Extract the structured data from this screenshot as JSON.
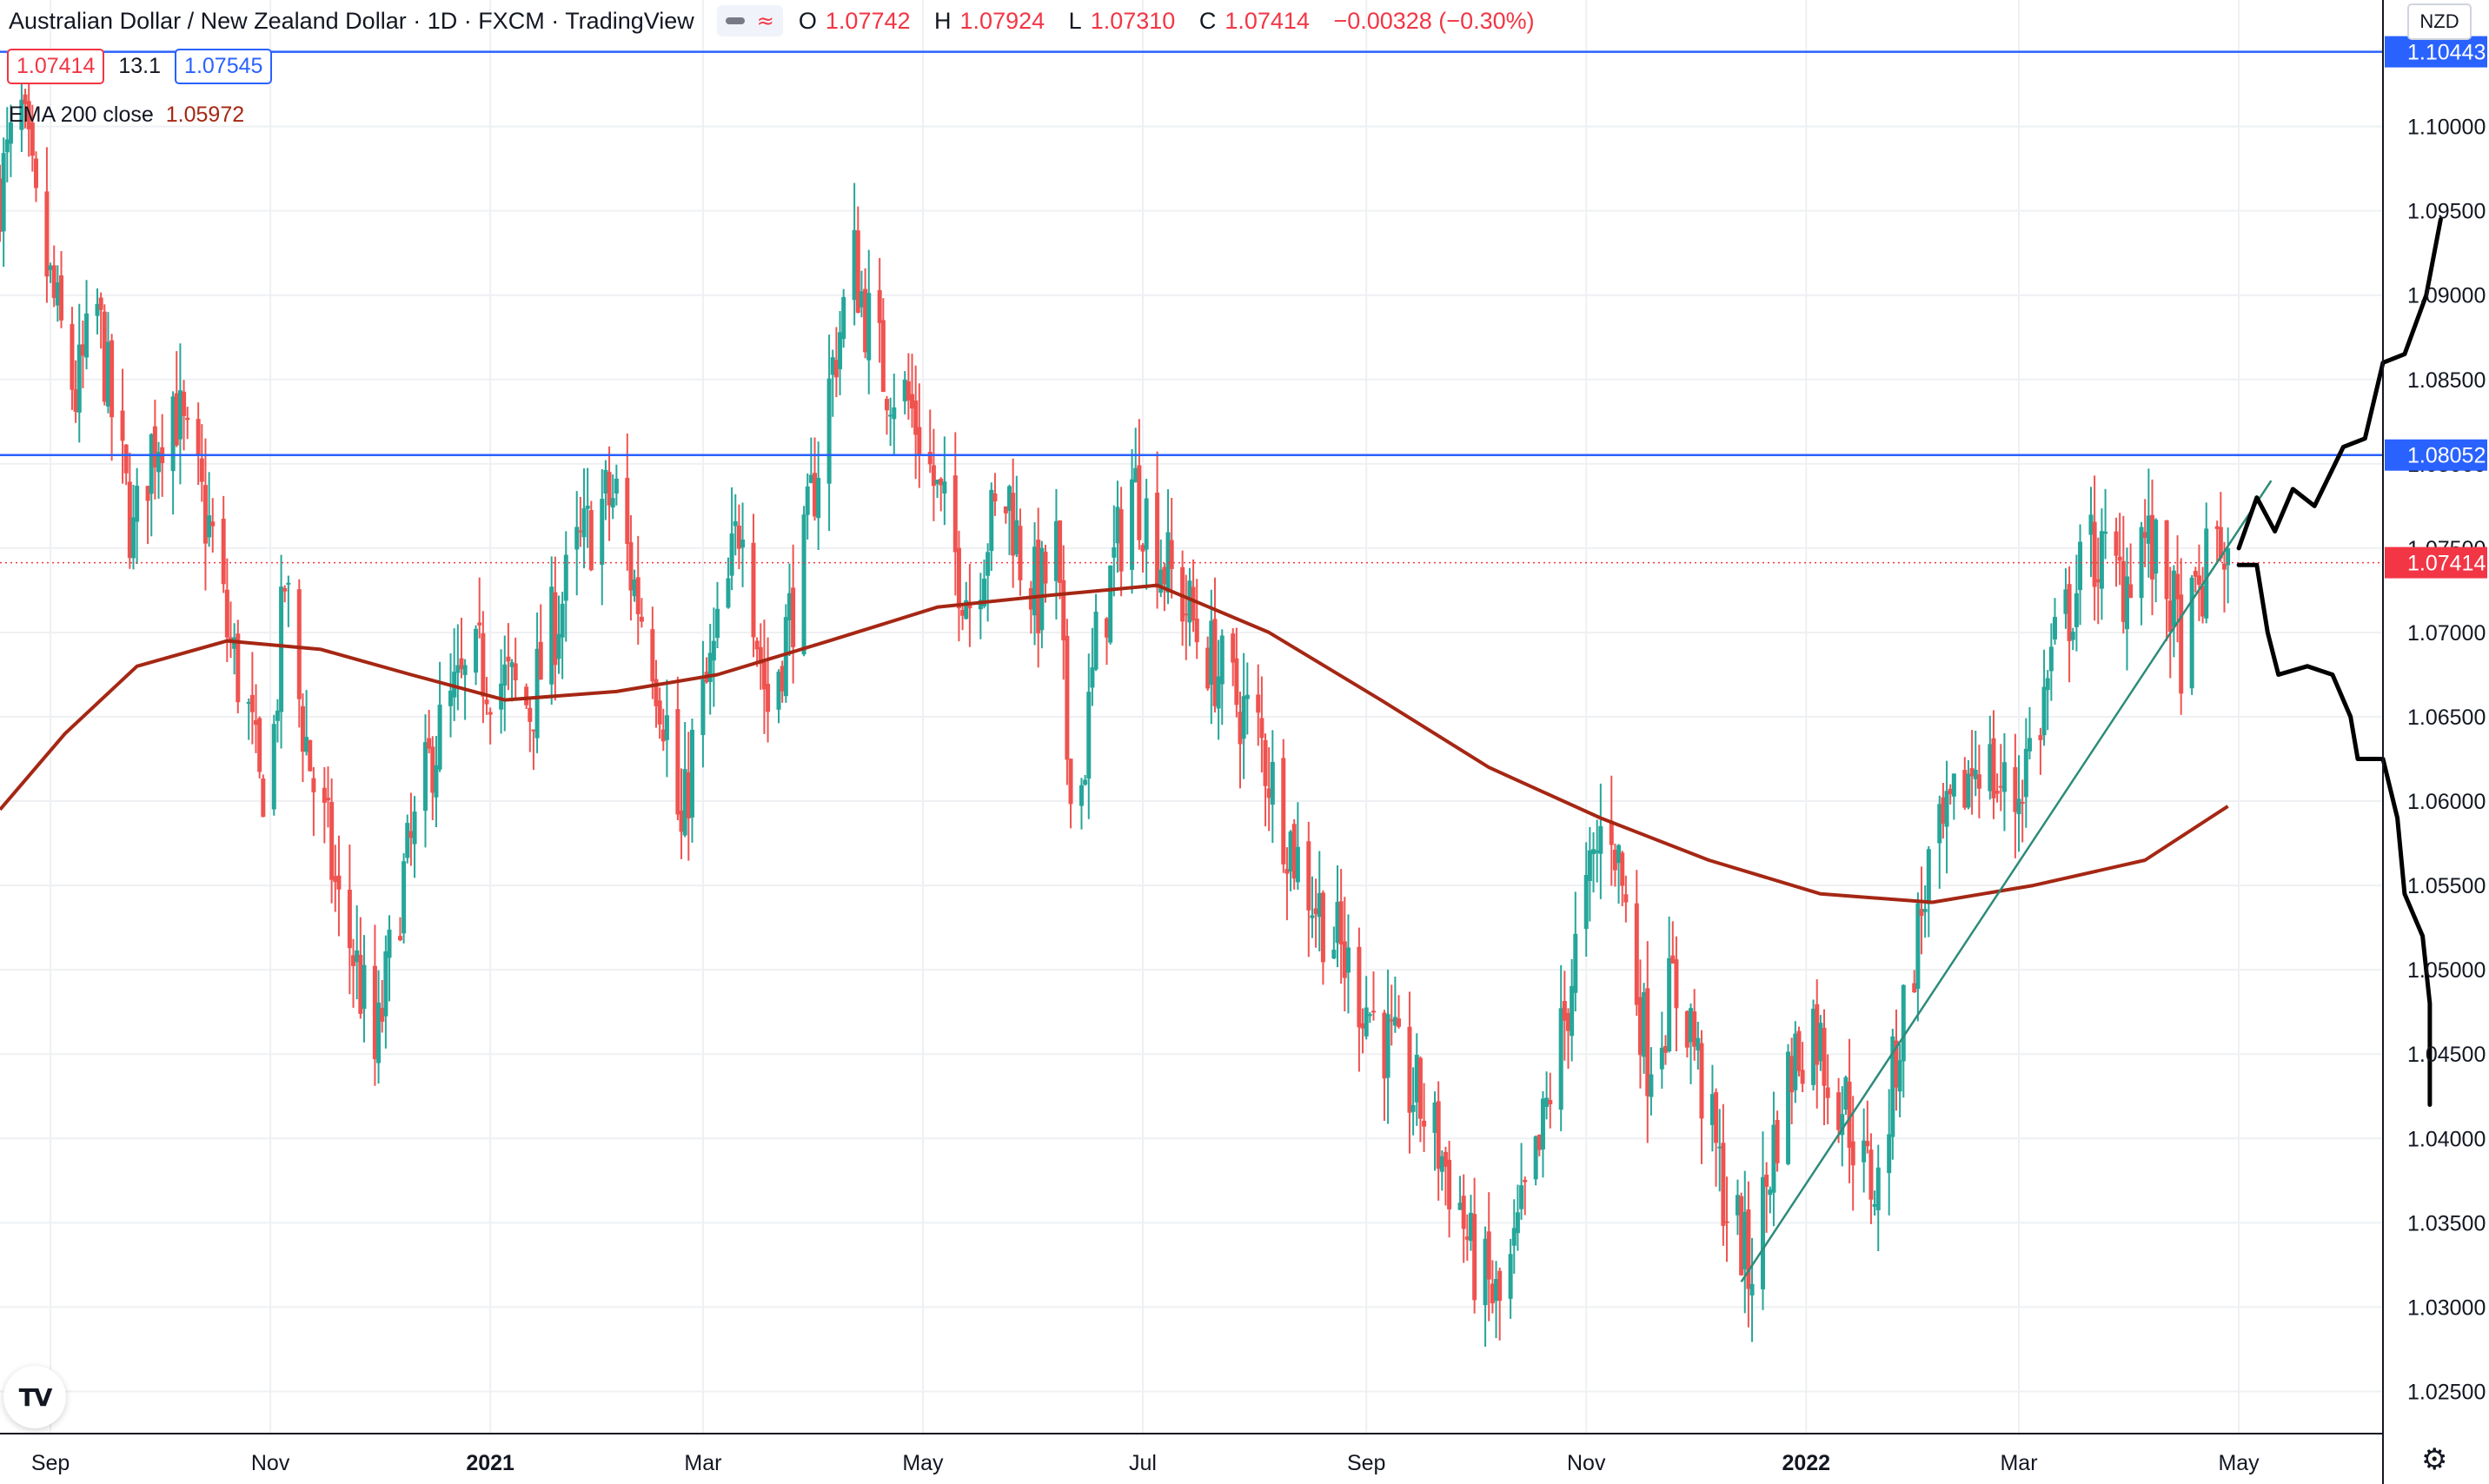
{
  "header": {
    "title": "Australian Dollar / New Zealand Dollar · 1D · FXCM · TradingView",
    "open_label": "O",
    "open": "1.07742",
    "high_label": "H",
    "high": "1.07924",
    "low_label": "L",
    "low": "1.07310",
    "close_label": "C",
    "close": "1.07414",
    "change": "−0.00328 (−0.30%)",
    "bid": "1.07414",
    "spread": "13.1",
    "ask": "1.07545",
    "ema_label": "EMA 200 close",
    "ema_value": "1.05972",
    "currency": "NZD"
  },
  "icons": [
    "eye-icon",
    "wave-icon",
    "tradingview-logo-icon",
    "gear-icon"
  ],
  "colors": {
    "up": "#26a69a",
    "down": "#ef5350",
    "ema": "#a52714",
    "hline": "#2962ff",
    "trendline": "#2e8b7a",
    "drawing": "#000000",
    "price": "#f23645",
    "grid": "#eef0f3"
  },
  "chart_data": {
    "type": "candlestick",
    "y_axis": {
      "min": 1.0225,
      "max": 1.1075,
      "ticks": [
        1.025,
        1.03,
        1.035,
        1.04,
        1.045,
        1.05,
        1.055,
        1.06,
        1.065,
        1.07,
        1.075,
        1.08,
        1.085,
        1.09,
        1.095,
        1.1
      ]
    },
    "x_axis": {
      "start": "2020-08-18",
      "end": "2022-06-10",
      "ticks": [
        {
          "label": "Sep",
          "date": "2020-09-01"
        },
        {
          "label": "Nov",
          "date": "2020-11-01"
        },
        {
          "label": "2021",
          "date": "2021-01-01"
        },
        {
          "label": "Mar",
          "date": "2021-03-01"
        },
        {
          "label": "May",
          "date": "2021-05-01"
        },
        {
          "label": "Jul",
          "date": "2021-07-01"
        },
        {
          "label": "Sep",
          "date": "2021-09-01"
        },
        {
          "label": "Nov",
          "date": "2021-11-01"
        },
        {
          "label": "2022",
          "date": "2022-01-01"
        },
        {
          "label": "Mar",
          "date": "2022-03-01"
        },
        {
          "label": "May",
          "date": "2022-05-01"
        }
      ]
    },
    "price_path": [
      [
        "2020-08-18",
        1.0965
      ],
      [
        "2020-08-24",
        1.1005
      ],
      [
        "2020-08-28",
        1.0945
      ],
      [
        "2020-09-03",
        1.0885
      ],
      [
        "2020-09-08",
        1.084
      ],
      [
        "2020-09-14",
        1.089
      ],
      [
        "2020-09-18",
        1.083
      ],
      [
        "2020-09-24",
        1.0755
      ],
      [
        "2020-09-29",
        1.081
      ],
      [
        "2020-10-05",
        1.084
      ],
      [
        "2020-10-09",
        1.0805
      ],
      [
        "2020-10-16",
        1.0755
      ],
      [
        "2020-10-20",
        1.07
      ],
      [
        "2020-10-26",
        1.065
      ],
      [
        "2020-10-29",
        1.0605
      ],
      [
        "2020-11-02",
        1.064
      ],
      [
        "2020-11-05",
        1.073
      ],
      [
        "2020-11-09",
        1.066
      ],
      [
        "2020-11-13",
        1.061
      ],
      [
        "2020-11-17",
        1.0575
      ],
      [
        "2020-11-20",
        1.0535
      ],
      [
        "2020-11-24",
        1.051
      ],
      [
        "2020-11-27",
        1.048
      ],
      [
        "2020-11-30",
        1.0445
      ],
      [
        "2020-12-02",
        1.0475
      ],
      [
        "2020-12-07",
        1.0545
      ],
      [
        "2020-12-11",
        1.058
      ],
      [
        "2020-12-16",
        1.063
      ],
      [
        "2020-12-22",
        1.066
      ],
      [
        "2020-12-29",
        1.068
      ],
      [
        "2021-01-05",
        1.067
      ],
      [
        "2021-01-12",
        1.0655
      ],
      [
        "2021-01-18",
        1.07
      ],
      [
        "2021-01-25",
        1.0745
      ],
      [
        "2021-02-01",
        1.0775
      ],
      [
        "2021-02-05",
        1.078
      ],
      [
        "2021-02-09",
        1.0735
      ],
      [
        "2021-02-15",
        1.069
      ],
      [
        "2021-02-19",
        1.0645
      ],
      [
        "2021-02-23",
        1.0575
      ],
      [
        "2021-02-26",
        1.063
      ],
      [
        "2021-03-03",
        1.0675
      ],
      [
        "2021-03-08",
        1.0725
      ],
      [
        "2021-03-12",
        1.078
      ],
      [
        "2021-03-16",
        1.07
      ],
      [
        "2021-03-19",
        1.0655
      ],
      [
        "2021-03-24",
        1.07
      ],
      [
        "2021-03-29",
        1.0745
      ],
      [
        "2021-04-01",
        1.079
      ],
      [
        "2021-04-07",
        1.087
      ],
      [
        "2021-04-12",
        1.092
      ],
      [
        "2021-04-15",
        1.089
      ],
      [
        "2021-04-20",
        1.0855
      ],
      [
        "2021-04-26",
        1.084
      ],
      [
        "2021-04-30",
        1.082
      ],
      [
        "2021-05-05",
        1.078
      ],
      [
        "2021-05-10",
        1.0745
      ],
      [
        "2021-05-14",
        1.072
      ],
      [
        "2021-05-19",
        1.076
      ],
      [
        "2021-05-25",
        1.078
      ],
      [
        "2021-05-28",
        1.0745
      ],
      [
        "2021-06-02",
        1.072
      ],
      [
        "2021-06-07",
        1.075
      ],
      [
        "2021-06-10",
        1.063
      ],
      [
        "2021-06-14",
        1.061
      ],
      [
        "2021-06-18",
        1.069
      ],
      [
        "2021-06-23",
        1.074
      ],
      [
        "2021-06-28",
        1.079
      ],
      [
        "2021-07-02",
        1.077
      ],
      [
        "2021-07-07",
        1.074
      ],
      [
        "2021-07-12",
        1.072
      ],
      [
        "2021-07-16",
        1.07
      ],
      [
        "2021-07-21",
        1.068
      ],
      [
        "2021-07-27",
        1.066
      ],
      [
        "2021-08-02",
        1.064
      ],
      [
        "2021-08-06",
        1.061
      ],
      [
        "2021-08-12",
        1.057
      ],
      [
        "2021-08-18",
        1.054
      ],
      [
        "2021-08-23",
        1.052
      ],
      [
        "2021-08-27",
        1.05
      ],
      [
        "2021-09-01",
        1.048
      ],
      [
        "2021-09-06",
        1.046
      ],
      [
        "2021-09-10",
        1.044
      ],
      [
        "2021-09-16",
        1.042
      ],
      [
        "2021-09-21",
        1.0395
      ],
      [
        "2021-09-27",
        1.036
      ],
      [
        "2021-09-30",
        1.033
      ],
      [
        "2021-10-05",
        1.031
      ],
      [
        "2021-10-08",
        1.03
      ],
      [
        "2021-10-12",
        1.033
      ],
      [
        "2021-10-15",
        1.036
      ],
      [
        "2021-10-19",
        1.039
      ],
      [
        "2021-10-22",
        1.043
      ],
      [
        "2021-10-26",
        1.047
      ],
      [
        "2021-10-29",
        1.051
      ],
      [
        "2021-11-02",
        1.055
      ],
      [
        "2021-11-05",
        1.058
      ],
      [
        "2021-11-08",
        1.059
      ],
      [
        "2021-11-11",
        1.055
      ],
      [
        "2021-11-15",
        1.049
      ],
      [
        "2021-11-18",
        1.045
      ],
      [
        "2021-11-22",
        1.047
      ],
      [
        "2021-11-25",
        1.049
      ],
      [
        "2021-11-30",
        1.047
      ],
      [
        "2021-12-03",
        1.043
      ],
      [
        "2021-12-07",
        1.039
      ],
      [
        "2021-12-10",
        1.036
      ],
      [
        "2021-12-14",
        1.034
      ],
      [
        "2021-12-16",
        1.032
      ],
      [
        "2021-12-20",
        1.036
      ],
      [
        "2021-12-24",
        1.041
      ],
      [
        "2021-12-29",
        1.045
      ],
      [
        "2022-01-03",
        1.047
      ],
      [
        "2022-01-07",
        1.044
      ],
      [
        "2022-01-12",
        1.042
      ],
      [
        "2022-01-17",
        1.038
      ],
      [
        "2022-01-21",
        1.037
      ],
      [
        "2022-01-26",
        1.045
      ],
      [
        "2022-01-31",
        1.051
      ],
      [
        "2022-02-04",
        1.056
      ],
      [
        "2022-02-09",
        1.058
      ],
      [
        "2022-02-14",
        1.061
      ],
      [
        "2022-02-18",
        1.063
      ],
      [
        "2022-02-23",
        1.061
      ],
      [
        "2022-02-28",
        1.06
      ],
      [
        "2022-03-03",
        1.0625
      ],
      [
        "2022-03-07",
        1.065
      ],
      [
        "2022-03-11",
        1.069
      ],
      [
        "2022-03-16",
        1.072
      ],
      [
        "2022-03-21",
        1.075
      ],
      [
        "2022-03-25",
        1.074
      ],
      [
        "2022-03-30",
        1.073
      ],
      [
        "2022-04-04",
        1.076
      ],
      [
        "2022-04-08",
        1.074
      ],
      [
        "2022-04-12",
        1.072
      ],
      [
        "2022-04-15",
        1.069
      ],
      [
        "2022-04-20",
        1.072
      ],
      [
        "2022-04-25",
        1.076
      ],
      [
        "2022-04-28",
        1.074
      ]
    ],
    "ema200": [
      [
        "2020-08-18",
        1.0595
      ],
      [
        "2020-09-05",
        1.064
      ],
      [
        "2020-09-25",
        1.068
      ],
      [
        "2020-10-20",
        1.0695
      ],
      [
        "2020-11-15",
        1.069
      ],
      [
        "2020-12-10",
        1.0675
      ],
      [
        "2021-01-05",
        1.066
      ],
      [
        "2021-02-05",
        1.0665
      ],
      [
        "2021-03-05",
        1.0675
      ],
      [
        "2021-04-05",
        1.0695
      ],
      [
        "2021-05-05",
        1.0715
      ],
      [
        "2021-06-05",
        1.0722
      ],
      [
        "2021-07-05",
        1.0728
      ],
      [
        "2021-08-05",
        1.07
      ],
      [
        "2021-09-05",
        1.066
      ],
      [
        "2021-10-05",
        1.062
      ],
      [
        "2021-11-05",
        1.059
      ],
      [
        "2021-12-05",
        1.0565
      ],
      [
        "2022-01-05",
        1.0545
      ],
      [
        "2022-02-05",
        1.054
      ],
      [
        "2022-03-05",
        1.055
      ],
      [
        "2022-04-05",
        1.0565
      ],
      [
        "2022-04-28",
        1.0597
      ]
    ],
    "horizontal_lines": [
      {
        "value": 1.10443,
        "label": "1.10443"
      },
      {
        "value": 1.08052,
        "label": "1.08052"
      }
    ],
    "current_price": {
      "value": 1.07414,
      "label": "1.07414"
    },
    "trendline": [
      [
        "2021-12-14",
        1.0315
      ],
      [
        "2022-05-10",
        1.079
      ]
    ],
    "bull_path": [
      [
        "2022-05-01",
        1.075
      ],
      [
        "2022-05-06",
        1.078
      ],
      [
        "2022-05-11",
        1.076
      ],
      [
        "2022-05-16",
        1.0785
      ],
      [
        "2022-05-22",
        1.0775
      ],
      [
        "2022-05-30",
        1.081
      ],
      [
        "2022-06-05",
        1.0815
      ],
      [
        "2022-06-10",
        1.086
      ],
      [
        "2022-06-16",
        1.0865
      ],
      [
        "2022-06-22",
        1.09
      ],
      [
        "2022-06-26",
        1.0945
      ]
    ],
    "bear_path": [
      [
        "2022-05-01",
        1.074
      ],
      [
        "2022-05-06",
        1.074
      ],
      [
        "2022-05-09",
        1.07
      ],
      [
        "2022-05-12",
        1.0675
      ],
      [
        "2022-05-20",
        1.068
      ],
      [
        "2022-05-27",
        1.0675
      ],
      [
        "2022-06-01",
        1.065
      ],
      [
        "2022-06-03",
        1.0625
      ],
      [
        "2022-06-10",
        1.0625
      ],
      [
        "2022-06-14",
        1.059
      ],
      [
        "2022-06-16",
        1.0545
      ],
      [
        "2022-06-21",
        1.052
      ],
      [
        "2022-06-23",
        1.048
      ],
      [
        "2022-06-23",
        1.042
      ]
    ]
  }
}
